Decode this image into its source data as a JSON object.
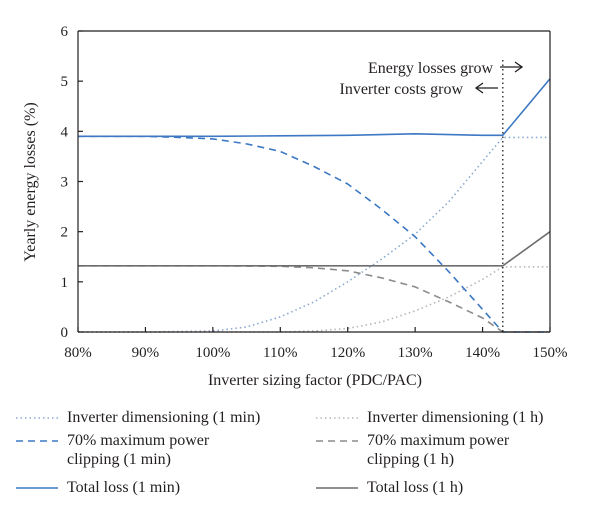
{
  "chart_data": {
    "type": "line",
    "xlabel": "Inverter sizing factor (PDC/PAC)",
    "ylabel": "Yearly energy losses (%)",
    "xlim": [
      80,
      150
    ],
    "ylim": [
      0,
      6
    ],
    "x_ticks": [
      80,
      90,
      100,
      110,
      120,
      130,
      140,
      150
    ],
    "x_tick_labels": [
      "80%",
      "90%",
      "100%",
      "110%",
      "120%",
      "130%",
      "140%",
      "150%"
    ],
    "y_ticks": [
      0,
      1,
      2,
      3,
      4,
      5,
      6
    ],
    "y_tick_labels": [
      "0",
      "1",
      "2",
      "3",
      "4",
      "5",
      "6"
    ],
    "grid": false,
    "vline": 143,
    "annotations": {
      "energy": "Energy losses grow",
      "inverter": "Inverter costs grow"
    },
    "series": [
      {
        "name": "Inverter dimensioning (1 min)",
        "color": "#8aa9d1",
        "dash": "dotted",
        "x": [
          80,
          90,
          100,
          105,
          110,
          115,
          120,
          125,
          130,
          135,
          140,
          143,
          145,
          150
        ],
        "y": [
          0,
          0,
          0.02,
          0.1,
          0.3,
          0.6,
          1.0,
          1.45,
          1.95,
          2.6,
          3.4,
          3.88,
          3.88,
          3.88
        ]
      },
      {
        "name": "Inverter dimensioning (1 h)",
        "color": "#b7b7b7",
        "dash": "dotted",
        "x": [
          80,
          90,
          100,
          110,
          115,
          120,
          125,
          130,
          135,
          140,
          143,
          145,
          150
        ],
        "y": [
          0,
          0,
          0,
          0,
          0.02,
          0.07,
          0.2,
          0.42,
          0.7,
          1.05,
          1.3,
          1.3,
          1.3
        ]
      },
      {
        "name": "70% maximum power clipping (1 min)",
        "color": "#3c78c3",
        "dash": "dashed",
        "x": [
          80,
          90,
          95,
          100,
          105,
          110,
          115,
          120,
          125,
          130,
          135,
          140,
          143,
          145,
          150
        ],
        "y": [
          3.9,
          3.9,
          3.88,
          3.85,
          3.75,
          3.6,
          3.3,
          2.95,
          2.45,
          1.9,
          1.2,
          0.45,
          0,
          0,
          0
        ]
      },
      {
        "name": "70% maximum power clipping (1 h)",
        "color": "#8c8c8c",
        "dash": "dashed",
        "x": [
          80,
          90,
          100,
          110,
          115,
          120,
          125,
          130,
          135,
          140,
          143,
          145,
          150
        ],
        "y": [
          1.32,
          1.32,
          1.32,
          1.31,
          1.28,
          1.22,
          1.08,
          0.9,
          0.6,
          0.28,
          0,
          0,
          0
        ]
      },
      {
        "name": "Total loss (1 min)",
        "color": "#3c78c3",
        "dash": "solid",
        "x": [
          80,
          90,
          100,
          110,
          120,
          130,
          140,
          143,
          150
        ],
        "y": [
          3.9,
          3.9,
          3.9,
          3.91,
          3.92,
          3.95,
          3.92,
          3.92,
          5.05
        ]
      },
      {
        "name": "Total loss (1 h)",
        "color": "#6d6d6d",
        "dash": "solid",
        "x": [
          80,
          90,
          100,
          110,
          120,
          130,
          140,
          143,
          150
        ],
        "y": [
          1.32,
          1.32,
          1.32,
          1.32,
          1.32,
          1.32,
          1.32,
          1.32,
          2.0
        ]
      }
    ]
  },
  "legend": {
    "items": [
      {
        "label": "Inverter dimensioning (1 min)"
      },
      {
        "label": "Inverter dimensioning (1 h)"
      },
      {
        "label": "70% maximum power\nclipping (1 min)"
      },
      {
        "label": "70% maximum power\nclipping (1 h)"
      },
      {
        "label": "Total loss (1 min)"
      },
      {
        "label": "Total loss (1 h)"
      }
    ]
  }
}
